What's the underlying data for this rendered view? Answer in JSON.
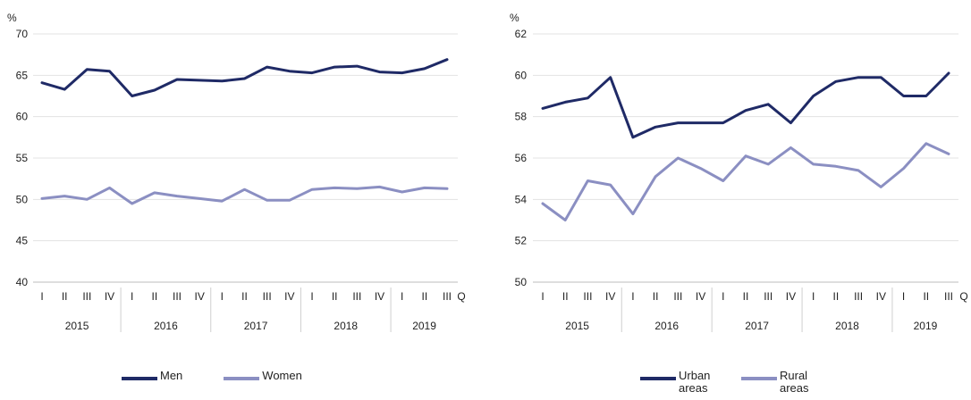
{
  "chart_data": [
    {
      "type": "line",
      "y_unit": "%",
      "ylim": [
        40,
        70
      ],
      "y_ticks": [
        40,
        45,
        50,
        55,
        60,
        65,
        70
      ],
      "x_axis_end_label": "Q",
      "quarters": [
        "I",
        "II",
        "III",
        "IV",
        "I",
        "II",
        "III",
        "IV",
        "I",
        "II",
        "III",
        "IV",
        "I",
        "II",
        "III",
        "IV",
        "I",
        "II",
        "III"
      ],
      "years": [
        "2015",
        "2016",
        "2017",
        "2018",
        "2019"
      ],
      "series": [
        {
          "name": "Men",
          "color": "#1f2a66",
          "values": [
            64.1,
            63.3,
            65.7,
            65.5,
            62.5,
            63.2,
            64.5,
            64.4,
            64.3,
            64.6,
            66.0,
            65.5,
            65.3,
            66.0,
            66.1,
            65.4,
            65.3,
            65.8,
            66.9
          ]
        },
        {
          "name": "Women",
          "color": "#8b8fc2",
          "values": [
            50.1,
            50.4,
            50.0,
            51.4,
            49.5,
            50.8,
            50.4,
            50.1,
            49.8,
            51.2,
            49.9,
            49.9,
            51.2,
            51.4,
            51.3,
            51.5,
            50.9,
            51.4,
            51.3
          ]
        }
      ]
    },
    {
      "type": "line",
      "y_unit": "%",
      "ylim": [
        50,
        62
      ],
      "y_ticks": [
        50,
        52,
        54,
        56,
        58,
        60,
        62
      ],
      "x_axis_end_label": "Q",
      "quarters": [
        "I",
        "II",
        "III",
        "IV",
        "I",
        "II",
        "III",
        "IV",
        "I",
        "II",
        "III",
        "IV",
        "I",
        "II",
        "III",
        "IV",
        "I",
        "II",
        "III"
      ],
      "years": [
        "2015",
        "2016",
        "2017",
        "2018",
        "2019"
      ],
      "series": [
        {
          "name": "Urban areas",
          "color": "#1f2a66",
          "values": [
            58.4,
            58.7,
            58.9,
            59.9,
            57.0,
            57.5,
            57.7,
            57.7,
            57.7,
            58.3,
            58.6,
            57.7,
            59.0,
            59.7,
            59.9,
            59.9,
            59.0,
            59.0,
            60.1
          ]
        },
        {
          "name": "Rural areas",
          "color": "#8b8fc2",
          "values": [
            53.8,
            53.0,
            54.9,
            54.7,
            53.3,
            55.1,
            56.0,
            55.5,
            54.9,
            56.1,
            55.7,
            56.5,
            55.7,
            55.6,
            55.4,
            54.6,
            55.5,
            56.7,
            56.2
          ]
        }
      ]
    }
  ],
  "legends": [
    {
      "items": [
        {
          "label": "Men",
          "color": "#1f2a66"
        },
        {
          "label": "Women",
          "color": "#8b8fc2"
        }
      ]
    },
    {
      "items": [
        {
          "label": "Urban areas",
          "color": "#1f2a66"
        },
        {
          "label": "Rural areas",
          "color": "#8b8fc2"
        }
      ]
    }
  ]
}
